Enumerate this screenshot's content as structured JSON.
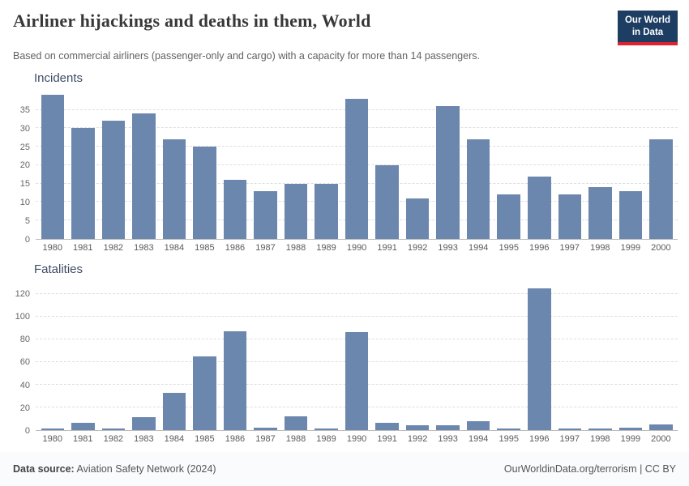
{
  "header": {
    "title": "Airliner hijackings and deaths in them, World",
    "subtitle": "Based on commercial airliners (passenger-only and cargo) with a capacity for more than 14 passengers.",
    "logo": {
      "line1": "Our World",
      "line2": "in Data"
    }
  },
  "colors": {
    "bar": "#6c87ad",
    "logo_bg": "#1d3d63",
    "logo_accent": "#e0222e"
  },
  "chart_data": [
    {
      "type": "bar",
      "title": "Incidents",
      "categories": [
        "1980",
        "1981",
        "1982",
        "1983",
        "1984",
        "1985",
        "1986",
        "1987",
        "1988",
        "1989",
        "1990",
        "1991",
        "1992",
        "1993",
        "1994",
        "1995",
        "1996",
        "1997",
        "1998",
        "1999",
        "2000"
      ],
      "values": [
        39,
        30,
        32,
        34,
        27,
        25,
        16,
        13,
        15,
        15,
        38,
        20,
        11,
        36,
        27,
        12,
        17,
        12,
        14,
        13,
        27
      ],
      "yticks": [
        0,
        5,
        10,
        15,
        20,
        25,
        30,
        35
      ],
      "ylim": [
        0,
        40
      ],
      "xlabel": "",
      "ylabel": "Incidents",
      "grid": "dashed horizontal",
      "legend": "none"
    },
    {
      "type": "bar",
      "title": "Fatalities",
      "categories": [
        "1980",
        "1981",
        "1982",
        "1983",
        "1984",
        "1985",
        "1986",
        "1987",
        "1988",
        "1989",
        "1990",
        "1991",
        "1992",
        "1993",
        "1994",
        "1995",
        "1996",
        "1997",
        "1998",
        "1999",
        "2000"
      ],
      "values": [
        1,
        6,
        1,
        11,
        33,
        65,
        87,
        2,
        12,
        1,
        86,
        6,
        4,
        4,
        8,
        1,
        125,
        1,
        1,
        2,
        5
      ],
      "yticks": [
        0,
        20,
        40,
        60,
        80,
        100,
        120
      ],
      "ylim": [
        0,
        130
      ],
      "xlabel": "",
      "ylabel": "Fatalities",
      "grid": "dashed horizontal",
      "legend": "none"
    }
  ],
  "footer": {
    "source_label": "Data source:",
    "source_value": " Aviation Safety Network (2024)",
    "right": "OurWorldinData.org/terrorism | CC BY"
  }
}
